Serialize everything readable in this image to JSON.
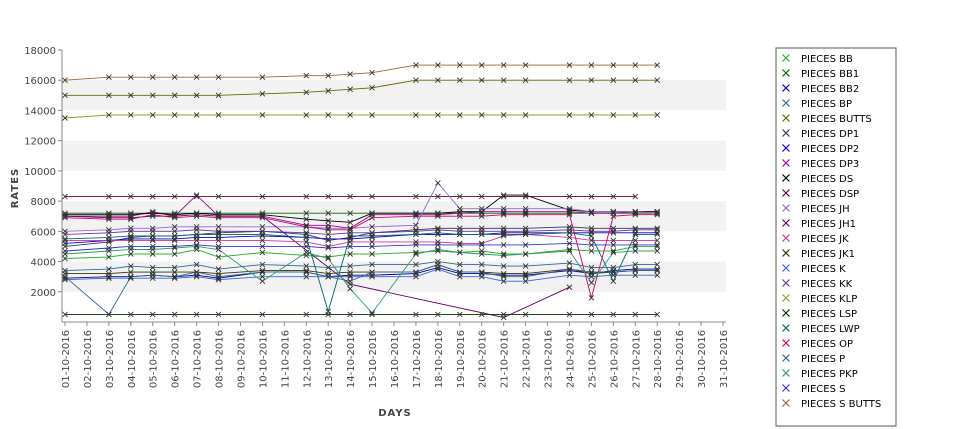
{
  "chart_data": {
    "type": "line",
    "xlabel": "DAYS",
    "ylabel": "RATES",
    "ylim": [
      0,
      18000
    ],
    "yticks": [
      2000,
      4000,
      6000,
      8000,
      10000,
      12000,
      14000,
      16000,
      18000
    ],
    "grid": "alternating horizontal bands",
    "legend_position": "right",
    "x": [
      "01-10-2016",
      "02-10-2016",
      "03-10-2016",
      "04-10-2016",
      "05-10-2016",
      "06-10-2016",
      "07-10-2016",
      "08-10-2016",
      "09-10-2016",
      "10-10-2016",
      "11-10-2016",
      "12-10-2016",
      "13-10-2016",
      "14-10-2016",
      "15-10-2016",
      "16-10-2016",
      "17-10-2016",
      "18-10-2016",
      "19-10-2016",
      "20-10-2016",
      "21-10-2016",
      "22-10-2016",
      "23-10-2016",
      "24-10-2016",
      "25-10-2016",
      "26-10-2016",
      "27-10-2016",
      "28-10-2016",
      "29-10-2016",
      "30-10-2016",
      "31-10-2016"
    ],
    "series": [
      {
        "name": "PIECES BB",
        "color": "#33aa33",
        "values": [
          4200,
          null,
          4300,
          4500,
          4500,
          4500,
          4800,
          4300,
          null,
          4600,
          null,
          4400,
          4300,
          4500,
          4500,
          null,
          4600,
          4700,
          4600,
          4700,
          4500,
          4500,
          null,
          4800,
          4700,
          4700,
          5000,
          5000,
          null,
          null,
          null
        ]
      },
      {
        "name": "PIECES BB1",
        "color": "#006600",
        "values": [
          7200,
          null,
          7200,
          7200,
          7200,
          7200,
          7200,
          7200,
          null,
          7200,
          null,
          7200,
          7200,
          7200,
          7200,
          null,
          7200,
          7200,
          7200,
          7200,
          7200,
          7200,
          null,
          7200,
          7200,
          7200,
          7200,
          7200,
          null,
          null,
          null
        ]
      },
      {
        "name": "PIECES BB2",
        "color": "#000099",
        "values": [
          2900,
          null,
          3000,
          3000,
          3100,
          3000,
          3100,
          2900,
          null,
          3300,
          null,
          3300,
          3000,
          3100,
          3100,
          null,
          3200,
          3600,
          3200,
          3200,
          3100,
          3100,
          null,
          3400,
          3200,
          3400,
          3500,
          3500,
          null,
          null,
          null
        ]
      },
      {
        "name": "PIECES BP",
        "color": "#336699",
        "values": [
          3400,
          null,
          3500,
          3700,
          3600,
          3600,
          3800,
          3500,
          null,
          3800,
          null,
          3700,
          3600,
          3700,
          3800,
          null,
          3800,
          4000,
          3800,
          3800,
          3700,
          3700,
          null,
          3900,
          3600,
          3600,
          3800,
          3800,
          null,
          null,
          null
        ]
      },
      {
        "name": "PIECES BUTTS",
        "color": "#666600",
        "values": [
          15000,
          null,
          15000,
          15000,
          15000,
          15000,
          15000,
          15000,
          null,
          15100,
          null,
          15200,
          15300,
          15400,
          15500,
          null,
          16000,
          16000,
          16000,
          16000,
          16000,
          16000,
          null,
          16000,
          16000,
          16000,
          16000,
          16000,
          null,
          null,
          null
        ]
      },
      {
        "name": "PIECES DP1",
        "color": "#333366",
        "values": [
          5000,
          null,
          5300,
          5600,
          5700,
          5700,
          5800,
          5900,
          null,
          6000,
          null,
          5800,
          5400,
          5600,
          5900,
          null,
          6100,
          6200,
          6200,
          6200,
          6200,
          6200,
          null,
          6300,
          6200,
          6200,
          6200,
          6200,
          null,
          null,
          null
        ]
      },
      {
        "name": "PIECES DP2",
        "color": "#0000cc",
        "values": [
          5200,
          null,
          5400,
          5500,
          5500,
          5500,
          5600,
          5600,
          null,
          5700,
          null,
          5600,
          5500,
          5500,
          5600,
          null,
          5800,
          5800,
          5800,
          5800,
          5900,
          5900,
          null,
          5900,
          5900,
          5900,
          5900,
          5900,
          null,
          null,
          null
        ]
      },
      {
        "name": "PIECES DP3",
        "color": "#990099",
        "values": [
          7000,
          null,
          7000,
          7000,
          7300,
          7000,
          8400,
          7000,
          null,
          7000,
          null,
          6400,
          6400,
          6200,
          7100,
          null,
          7100,
          7100,
          7200,
          7300,
          7300,
          7300,
          null,
          7300,
          7200,
          7200,
          7300,
          7300,
          null,
          null,
          null
        ]
      },
      {
        "name": "PIECES DS",
        "color": "#000000",
        "values": [
          7100,
          null,
          7100,
          7100,
          7200,
          7100,
          7200,
          7100,
          null,
          7100,
          null,
          6800,
          6700,
          6600,
          7200,
          null,
          7200,
          7200,
          7300,
          7300,
          8400,
          8400,
          null,
          7400,
          7300,
          7300,
          7300,
          7300,
          null,
          null,
          null
        ]
      },
      {
        "name": "PIECES DSP",
        "color": "#660033",
        "values": [
          8300,
          null,
          8300,
          8300,
          8300,
          8300,
          8300,
          8300,
          null,
          8300,
          null,
          8300,
          8300,
          8300,
          8300,
          null,
          8300,
          8300,
          8300,
          8300,
          8300,
          8300,
          null,
          8300,
          8300,
          8300,
          8300,
          null,
          null,
          null,
          null
        ]
      },
      {
        "name": "PIECES JH",
        "color": "#9966cc",
        "values": [
          6000,
          null,
          6100,
          6200,
          6200,
          6300,
          6300,
          6300,
          null,
          6300,
          null,
          6300,
          6200,
          6200,
          6300,
          null,
          6400,
          9200,
          7500,
          7500,
          7500,
          7500,
          null,
          7500,
          7300,
          7300,
          7300,
          7200,
          null,
          null,
          null
        ]
      },
      {
        "name": "PIECES JH1",
        "color": "#660066",
        "values": [
          7000,
          null,
          6900,
          6900,
          7000,
          7000,
          7100,
          7000,
          null,
          7000,
          null,
          null,
          null,
          2500,
          null,
          null,
          null,
          null,
          null,
          null,
          300,
          null,
          null,
          2300,
          null,
          null,
          null,
          null,
          null,
          null,
          null
        ]
      },
      {
        "name": "PIECES JK",
        "color": "#cc3399",
        "values": [
          5400,
          null,
          5400,
          5400,
          5400,
          5400,
          5400,
          5400,
          null,
          5400,
          null,
          5300,
          5000,
          5300,
          5300,
          null,
          5300,
          5300,
          5200,
          5200,
          5700,
          5800,
          null,
          5600,
          5400,
          5400,
          5400,
          5400,
          null,
          null,
          null
        ]
      },
      {
        "name": "PIECES JK1",
        "color": "#333300",
        "values": [
          3200,
          null,
          3200,
          3300,
          3300,
          3300,
          3300,
          3200,
          null,
          3400,
          null,
          3400,
          3200,
          3300,
          3300,
          null,
          3300,
          3800,
          3300,
          3300,
          3200,
          3200,
          null,
          3500,
          3200,
          3300,
          3400,
          3400,
          null,
          null,
          null
        ]
      },
      {
        "name": "PIECES K",
        "color": "#3366cc",
        "values": [
          2800,
          null,
          2900,
          2900,
          2900,
          2900,
          3000,
          2800,
          null,
          3000,
          null,
          3000,
          3000,
          3000,
          3000,
          null,
          3000,
          3500,
          3000,
          3000,
          2700,
          2700,
          null,
          3100,
          3000,
          3100,
          3100,
          3100,
          null,
          null,
          null
        ]
      },
      {
        "name": "PIECES KK",
        "color": "#663399",
        "values": [
          5800,
          null,
          5900,
          6000,
          6000,
          6000,
          6100,
          6000,
          null,
          6000,
          null,
          5900,
          5800,
          5900,
          5900,
          null,
          6000,
          6100,
          6000,
          6000,
          6000,
          6000,
          null,
          6100,
          6000,
          6000,
          6100,
          6100,
          null,
          null,
          null
        ]
      },
      {
        "name": "PIECES KLP",
        "color": "#999933",
        "values": [
          13500,
          null,
          13700,
          13700,
          13700,
          13700,
          13700,
          13700,
          null,
          13700,
          null,
          13700,
          13700,
          13700,
          13700,
          null,
          13700,
          13700,
          13700,
          13700,
          13700,
          13700,
          null,
          13700,
          13700,
          13700,
          13700,
          13700,
          null,
          null,
          null
        ]
      },
      {
        "name": "PIECES LSP",
        "color": "#003300",
        "values": [
          500,
          null,
          500,
          500,
          500,
          500,
          500,
          500,
          null,
          500,
          null,
          500,
          500,
          500,
          500,
          null,
          500,
          500,
          500,
          500,
          500,
          500,
          null,
          500,
          500,
          500,
          500,
          500,
          null,
          null,
          null
        ]
      },
      {
        "name": "PIECES LWP",
        "color": "#006666",
        "values": [
          5500,
          null,
          5600,
          5700,
          5700,
          5700,
          5800,
          5800,
          null,
          5800,
          null,
          5600,
          700,
          5700,
          5700,
          null,
          5800,
          5900,
          5800,
          5800,
          5800,
          5800,
          null,
          5900,
          5700,
          2700,
          5800,
          5800,
          null,
          null,
          null
        ]
      },
      {
        "name": "PIECES OP",
        "color": "#cc0066",
        "values": [
          6900,
          null,
          6800,
          6800,
          7100,
          6900,
          7000,
          6900,
          null,
          6900,
          null,
          6300,
          6100,
          6100,
          6900,
          null,
          7000,
          7000,
          7000,
          7000,
          7100,
          7100,
          null,
          7100,
          1600,
          7000,
          7100,
          7100,
          null,
          null,
          null
        ]
      },
      {
        "name": "PIECES P",
        "color": "#336699",
        "values": [
          3000,
          null,
          500,
          3000,
          3100,
          3000,
          3300,
          3000,
          null,
          3300,
          null,
          3300,
          3000,
          2700,
          3300,
          null,
          3300,
          3800,
          3300,
          3300,
          3000,
          3000,
          null,
          3500,
          3300,
          3300,
          3400,
          3400,
          null,
          null,
          null
        ]
      },
      {
        "name": "PIECES PKP",
        "color": "#339966",
        "values": [
          4500,
          null,
          4700,
          4800,
          4800,
          4900,
          5000,
          4800,
          null,
          2700,
          null,
          4600,
          4200,
          2200,
          600,
          null,
          4500,
          4800,
          4600,
          4500,
          4400,
          4500,
          null,
          4700,
          2600,
          4600,
          4700,
          4700,
          null,
          null,
          null
        ]
      },
      {
        "name": "PIECES S",
        "color": "#3333cc",
        "values": [
          4700,
          null,
          4900,
          5000,
          5000,
          5000,
          5100,
          5000,
          null,
          5000,
          null,
          5000,
          4900,
          5000,
          5000,
          null,
          5100,
          5100,
          5100,
          5100,
          5100,
          5100,
          null,
          5200,
          5100,
          5100,
          5100,
          5100,
          null,
          null,
          null
        ]
      },
      {
        "name": "PIECES S BUTTS",
        "color": "#996633",
        "values": [
          16000,
          null,
          16200,
          16200,
          16200,
          16200,
          16200,
          16200,
          null,
          16200,
          null,
          16300,
          16300,
          16400,
          16500,
          null,
          17000,
          17000,
          17000,
          17000,
          17000,
          17000,
          null,
          17000,
          17000,
          17000,
          17000,
          17000,
          null,
          null,
          null
        ]
      }
    ]
  }
}
